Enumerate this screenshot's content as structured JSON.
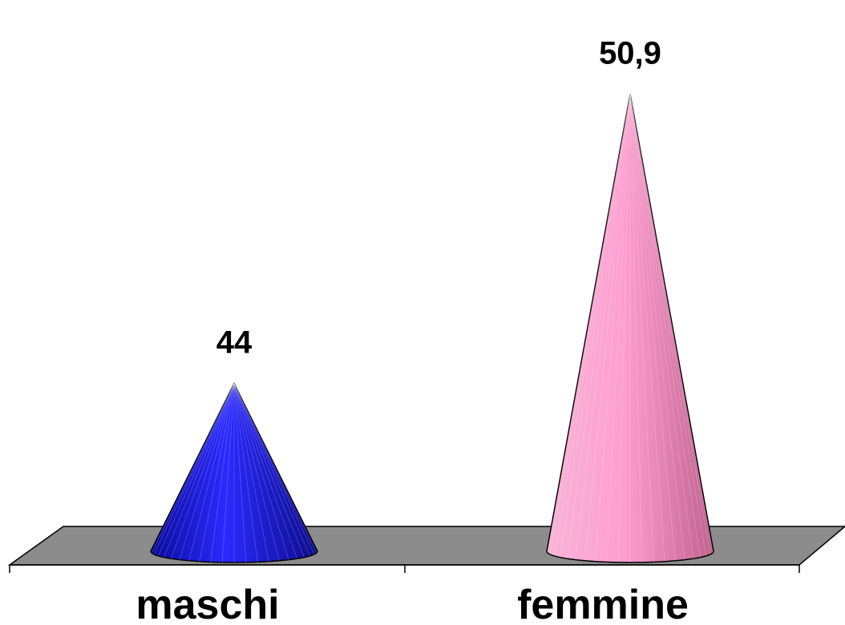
{
  "chart_data": {
    "type": "bar",
    "shape": "cone-3d",
    "categories": [
      "maschi",
      "femmine"
    ],
    "values": [
      44,
      50.9
    ],
    "data_labels": [
      "44",
      "50,9"
    ],
    "colors": [
      "#1a1ae6",
      "#f29ac8"
    ],
    "floor_color": "#8c8c8c",
    "ylim": [
      40,
      52
    ],
    "grid": false,
    "legend": "none",
    "title": "",
    "xlabel": "",
    "ylabel": ""
  }
}
